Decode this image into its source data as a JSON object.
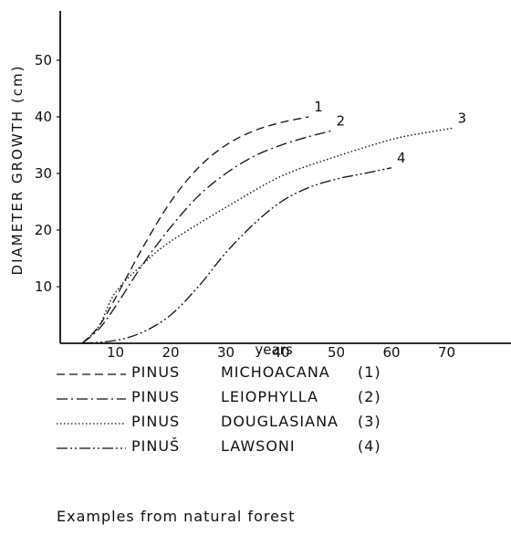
{
  "chart_data": {
    "type": "line",
    "ylabel": "DIAMETER GROWTH (cm)",
    "xlabel": "years",
    "xlim": [
      0,
      78
    ],
    "ylim": [
      0,
      57
    ],
    "xticks": [
      10,
      20,
      30,
      40,
      50,
      60,
      70
    ],
    "yticks": [
      10,
      20,
      30,
      40,
      50
    ],
    "grid": false,
    "series": [
      {
        "name": "PINUS MICHOACANA (1)",
        "label": "1",
        "dash": "9,5",
        "x": [
          4,
          7,
          10,
          15,
          20,
          25,
          30,
          35,
          40,
          45
        ],
        "y": [
          0,
          3,
          8,
          17,
          25,
          31,
          35,
          37.5,
          39,
          40
        ]
      },
      {
        "name": "PINUS LEIOPHYLLA (2)",
        "label": "2",
        "dash": "12,4,2,4",
        "x": [
          4,
          7,
          10,
          15,
          20,
          25,
          30,
          35,
          40,
          45,
          49
        ],
        "y": [
          0,
          2.5,
          6.5,
          14,
          20.5,
          26,
          30,
          33,
          35,
          36.5,
          37.5
        ]
      },
      {
        "name": "PINUS DOUGLASIANA (3)",
        "label": "3",
        "dash": "1.5,2.5",
        "x": [
          4,
          7,
          10,
          15,
          20,
          30,
          40,
          50,
          60,
          65,
          71
        ],
        "y": [
          0,
          3,
          9,
          14,
          18,
          24,
          29.5,
          33,
          36,
          37,
          38
        ]
      },
      {
        "name": "PINUS LAWSONI (4)",
        "label": "4",
        "dash": "12,3,2,3,2,3",
        "x": [
          4,
          10,
          15,
          20,
          25,
          30,
          35,
          40,
          45,
          50,
          55,
          60
        ],
        "y": [
          0,
          0.5,
          2,
          5,
          10,
          16,
          21,
          25,
          27.5,
          29,
          30,
          31
        ]
      }
    ]
  },
  "legend": [
    {
      "genus": "PINUS",
      "species": "MICHOACANA",
      "num": "(1)"
    },
    {
      "genus": "PINUS",
      "species": "LEIOPHYLLA",
      "num": "(2)"
    },
    {
      "genus": "PINUS",
      "species": "DOUGLASIANA",
      "num": "(3)"
    },
    {
      "genus": "PINUŠ",
      "species": "LAWSONI",
      "num": "(4)"
    }
  ],
  "note": "Examples from natural forest"
}
